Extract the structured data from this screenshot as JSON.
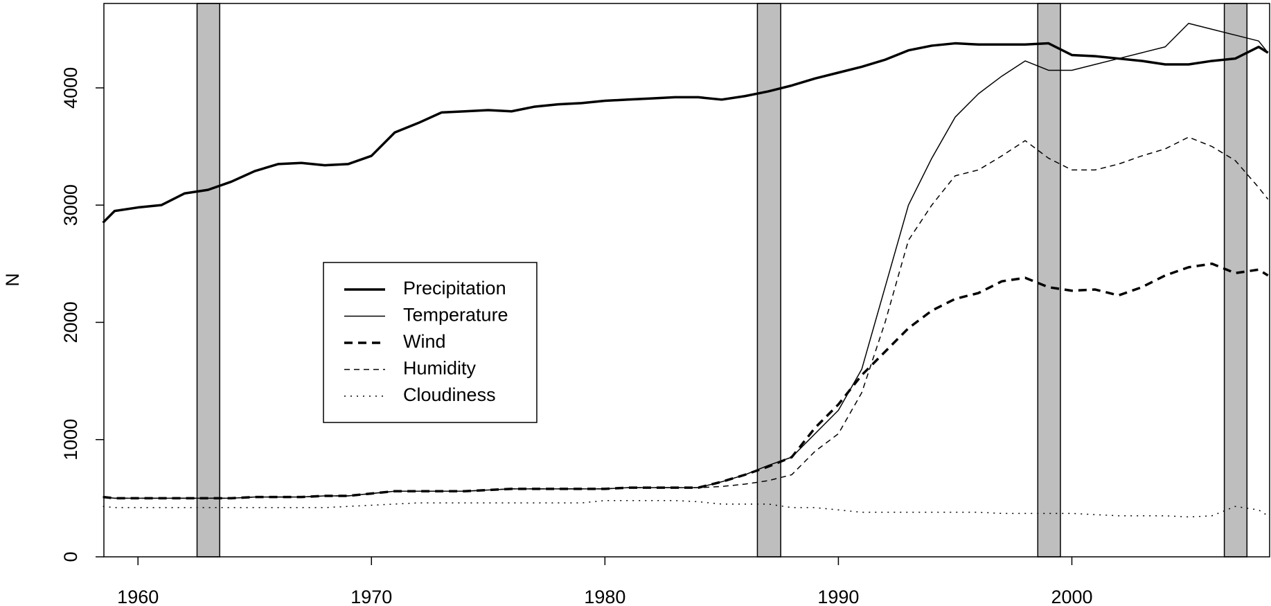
{
  "chart_data": {
    "type": "line",
    "y_label": "N",
    "x": [
      1958.5,
      1959,
      1960,
      1961,
      1962,
      1963,
      1964,
      1965,
      1966,
      1967,
      1968,
      1969,
      1970,
      1971,
      1972,
      1973,
      1974,
      1975,
      1976,
      1977,
      1978,
      1979,
      1980,
      1981,
      1982,
      1983,
      1984,
      1985,
      1986,
      1987,
      1988,
      1989,
      1990,
      1991,
      1992,
      1993,
      1994,
      1995,
      1996,
      1997,
      1998,
      1999,
      2000,
      2001,
      2002,
      2003,
      2004,
      2005,
      2006,
      2007,
      2008,
      2008.4
    ],
    "series": [
      {
        "name": "Precipitation",
        "color": "#000000",
        "dash": "solid",
        "weight": "heavy",
        "values": [
          2850,
          2950,
          2980,
          3000,
          3100,
          3130,
          3200,
          3290,
          3350,
          3360,
          3340,
          3350,
          3420,
          3620,
          3700,
          3790,
          3800,
          3810,
          3800,
          3840,
          3860,
          3870,
          3890,
          3900,
          3910,
          3920,
          3920,
          3900,
          3930,
          3970,
          4020,
          4080,
          4130,
          4180,
          4240,
          4320,
          4360,
          4380,
          4370,
          4370,
          4370,
          4380,
          4280,
          4270,
          4250,
          4230,
          4200,
          4200,
          4230,
          4250,
          4350,
          4300
        ]
      },
      {
        "name": "Temperature",
        "color": "#000000",
        "dash": "solid",
        "weight": "light",
        "values": [
          510,
          500,
          500,
          500,
          500,
          500,
          500,
          510,
          510,
          510,
          520,
          520,
          540,
          560,
          560,
          560,
          560,
          570,
          580,
          580,
          580,
          580,
          580,
          590,
          590,
          590,
          590,
          640,
          700,
          780,
          850,
          1050,
          1250,
          1600,
          2300,
          3000,
          3400,
          3750,
          3950,
          4100,
          4230,
          4150,
          4150,
          4200,
          4250,
          4300,
          4350,
          4550,
          4500,
          4450,
          4400,
          4300
        ]
      },
      {
        "name": "Wind",
        "color": "#000000",
        "dash": "dashed",
        "weight": "heavy",
        "values": [
          510,
          500,
          500,
          500,
          500,
          500,
          500,
          510,
          510,
          510,
          520,
          520,
          540,
          560,
          560,
          560,
          560,
          570,
          580,
          580,
          580,
          580,
          580,
          590,
          590,
          590,
          590,
          640,
          700,
          770,
          850,
          1100,
          1300,
          1550,
          1750,
          1950,
          2100,
          2200,
          2250,
          2350,
          2380,
          2300,
          2270,
          2280,
          2230,
          2300,
          2400,
          2470,
          2500,
          2420,
          2450,
          2400
        ]
      },
      {
        "name": "Humidity",
        "color": "#000000",
        "dash": "dashed",
        "weight": "light",
        "values": [
          510,
          500,
          500,
          500,
          500,
          500,
          500,
          510,
          510,
          510,
          520,
          520,
          540,
          560,
          560,
          560,
          560,
          570,
          580,
          580,
          580,
          580,
          580,
          590,
          590,
          590,
          590,
          600,
          620,
          650,
          700,
          900,
          1050,
          1400,
          2000,
          2700,
          3000,
          3250,
          3300,
          3420,
          3550,
          3400,
          3300,
          3300,
          3350,
          3420,
          3480,
          3580,
          3500,
          3380,
          3150,
          3050
        ]
      },
      {
        "name": "Cloudiness",
        "color": "#000000",
        "dash": "dotted",
        "weight": "light",
        "values": [
          430,
          420,
          420,
          420,
          420,
          420,
          420,
          420,
          420,
          420,
          420,
          430,
          440,
          450,
          460,
          460,
          460,
          460,
          460,
          460,
          460,
          460,
          480,
          480,
          480,
          480,
          470,
          450,
          450,
          450,
          420,
          420,
          400,
          380,
          380,
          380,
          380,
          380,
          380,
          370,
          370,
          370,
          370,
          360,
          350,
          350,
          350,
          340,
          350,
          430,
          400,
          350
        ]
      }
    ],
    "shaded_regions": [
      [
        1962.53,
        1963.5
      ],
      [
        1986.53,
        1987.53
      ],
      [
        1998.54,
        1999.51
      ],
      [
        2006.53,
        2007.5
      ]
    ],
    "shade_color": "#bebebe",
    "xlim": [
      1958.54,
      2008.47
    ],
    "ylim": [
      0,
      4720
    ],
    "xticks": [
      1960,
      1970,
      1980,
      1990,
      2000
    ],
    "yticks": [
      0,
      1000,
      2000,
      3000,
      4000
    ],
    "legend": "center-left"
  }
}
